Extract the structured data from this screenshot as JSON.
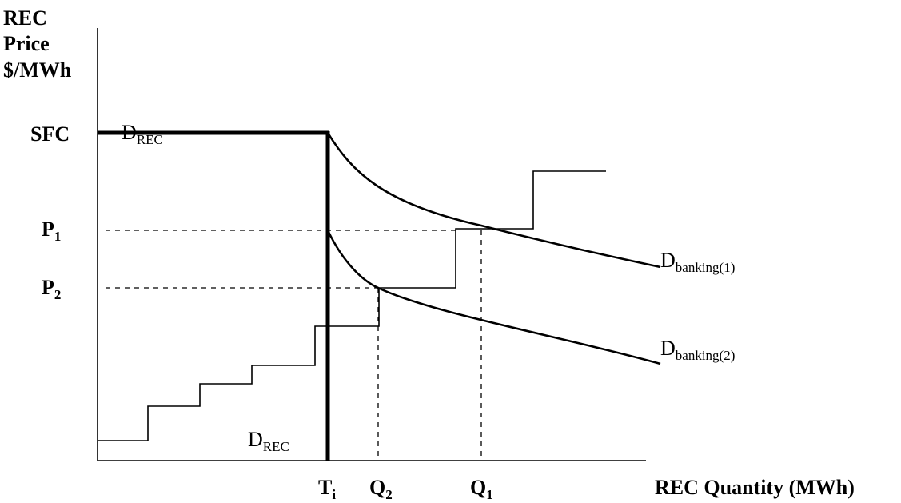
{
  "y_axis": {
    "line1": "REC",
    "line2": "Price",
    "line3": "$/MWh"
  },
  "x_axis": {
    "label": "REC Quantity (MWh)"
  },
  "price_levels": {
    "sfc": "SFC",
    "p1": {
      "base": "P",
      "sub": "1"
    },
    "p2": {
      "base": "P",
      "sub": "2"
    }
  },
  "quantity_levels": {
    "ti": {
      "base": "T",
      "sub": "i"
    },
    "q2": {
      "base": "Q",
      "sub": "2"
    },
    "q1": {
      "base": "Q",
      "sub": "1"
    }
  },
  "curves": {
    "d_rec_top": {
      "base": "D",
      "sub": "REC"
    },
    "d_rec_bottom": {
      "base": "D",
      "sub": "REC"
    },
    "banking1": {
      "base": "D",
      "sub": "banking(1)"
    },
    "banking2": {
      "base": "D",
      "sub": "banking(2)"
    }
  }
}
